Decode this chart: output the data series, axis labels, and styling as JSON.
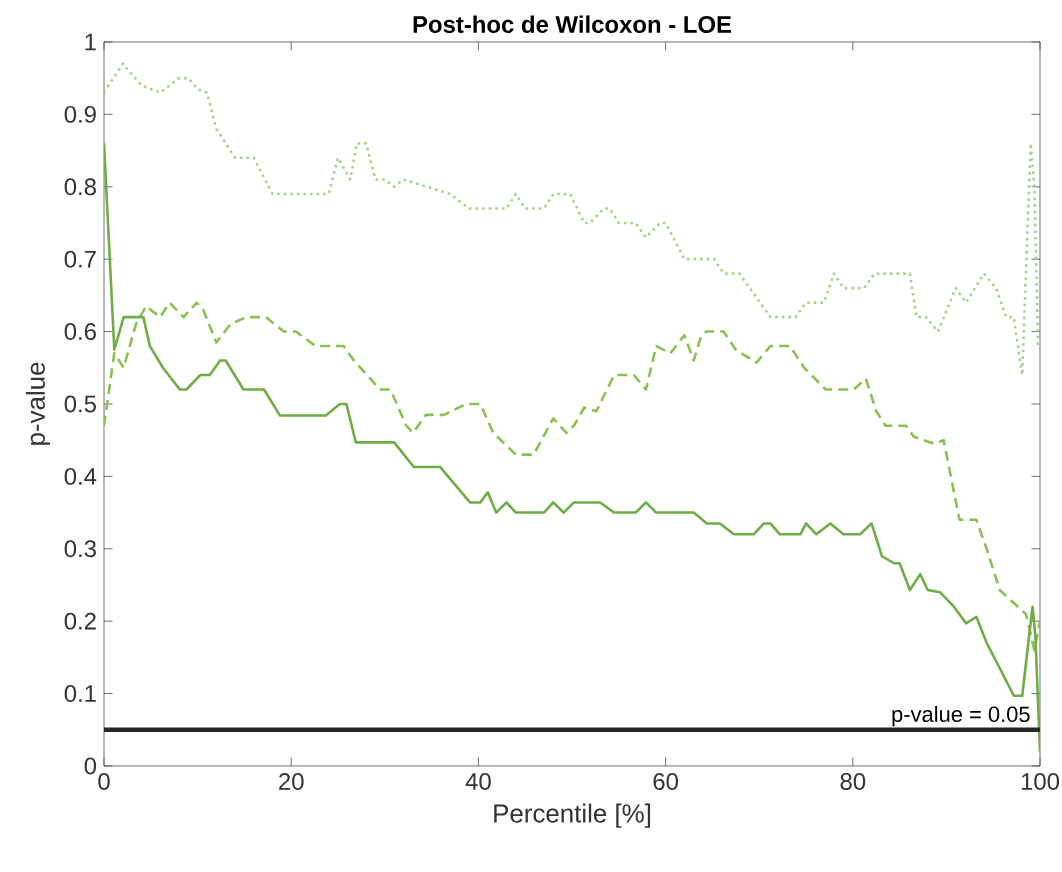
{
  "chart_data": {
    "type": "line",
    "title": "Post-hoc de Wilcoxon - LOE",
    "xlabel": "Percentile [%]",
    "ylabel": "p-value",
    "xlim": [
      0,
      100
    ],
    "ylim": [
      0,
      1
    ],
    "xticks": [
      0,
      20,
      40,
      60,
      80,
      100
    ],
    "yticks": [
      0,
      0.1,
      0.2,
      0.3,
      0.4,
      0.5,
      0.6,
      0.7,
      0.8,
      0.9,
      1
    ],
    "grid": false,
    "series": [
      {
        "color": "#a9d08e",
        "line_style": "dotted",
        "x": [
          0,
          2,
          4,
          6,
          8,
          9,
          10,
          11,
          12,
          13,
          14,
          16,
          18,
          24,
          25,
          26.3,
          27,
          28,
          29,
          30,
          31,
          32,
          37,
          39,
          43,
          44,
          45,
          47,
          48,
          49.8,
          51.3,
          51.9,
          53.4,
          54,
          55,
          56.8,
          57.9,
          59.4,
          60,
          62,
          65.2,
          66.2,
          67.9,
          71.2,
          73.9,
          75,
          76.9,
          78,
          79,
          81.2,
          82.3,
          86.1,
          86.8,
          87.8,
          89.1,
          91,
          92.1,
          94,
          95.3,
          96.4,
          97.2,
          98.1,
          99,
          99.4,
          99.8,
          100
        ],
        "values": [
          0.93,
          0.97,
          0.94,
          0.93,
          0.95,
          0.95,
          0.935,
          0.93,
          0.88,
          0.86,
          0.84,
          0.84,
          0.79,
          0.79,
          0.84,
          0.81,
          0.86,
          0.86,
          0.81,
          0.81,
          0.8,
          0.81,
          0.79,
          0.77,
          0.77,
          0.79,
          0.77,
          0.77,
          0.79,
          0.79,
          0.75,
          0.75,
          0.77,
          0.77,
          0.75,
          0.75,
          0.73,
          0.75,
          0.75,
          0.7,
          0.7,
          0.68,
          0.68,
          0.62,
          0.62,
          0.64,
          0.64,
          0.68,
          0.66,
          0.66,
          0.68,
          0.68,
          0.62,
          0.62,
          0.6,
          0.66,
          0.64,
          0.68,
          0.66,
          0.62,
          0.62,
          0.54,
          0.86,
          0.8,
          0.58,
          0.58
        ]
      },
      {
        "color": "#8cc152",
        "line_style": "dashed",
        "x": [
          0,
          1.1,
          2.1,
          3.4,
          4.5,
          6,
          7,
          8.5,
          9.9,
          10.6,
          12,
          13.5,
          15.2,
          17.3,
          19.2,
          20.5,
          22.6,
          25.6,
          26.7,
          29.5,
          30.6,
          32.3,
          33,
          34.4,
          36.3,
          38.7,
          40.2,
          41.6,
          44,
          45.9,
          48,
          49.4,
          50.2,
          51.3,
          52.6,
          54.5,
          56.6,
          57.9,
          59,
          60.5,
          62,
          63,
          63.7,
          64.3,
          66.2,
          67.5,
          69.7,
          71.2,
          73.3,
          74.8,
          77.1,
          80.1,
          81.4,
          82.5,
          83.5,
          85.7,
          86.5,
          88.7,
          89.7,
          91.4,
          93.2,
          94.3,
          95.7,
          97.2,
          98.5,
          99.4,
          100
        ],
        "values": [
          0.47,
          0.57,
          0.55,
          0.61,
          0.635,
          0.62,
          0.64,
          0.62,
          0.64,
          0.63,
          0.585,
          0.61,
          0.62,
          0.62,
          0.6,
          0.6,
          0.58,
          0.58,
          0.56,
          0.52,
          0.52,
          0.47,
          0.46,
          0.485,
          0.485,
          0.5,
          0.5,
          0.46,
          0.43,
          0.43,
          0.48,
          0.46,
          0.47,
          0.495,
          0.49,
          0.54,
          0.54,
          0.52,
          0.58,
          0.57,
          0.595,
          0.56,
          0.59,
          0.6,
          0.6,
          0.575,
          0.557,
          0.58,
          0.58,
          0.55,
          0.52,
          0.52,
          0.535,
          0.49,
          0.47,
          0.47,
          0.455,
          0.445,
          0.45,
          0.34,
          0.34,
          0.3,
          0.243,
          0.225,
          0.21,
          0.16,
          0.2
        ]
      },
      {
        "color": "#70ad47",
        "line_style": "solid",
        "x": [
          0,
          1.1,
          2.1,
          4.2,
          4.9,
          6.3,
          8.1,
          8.8,
          10.3,
          11.3,
          12.4,
          13,
          14.9,
          17.1,
          18.8,
          23.7,
          25.2,
          25.9,
          26.9,
          31,
          33.1,
          35.9,
          39.1,
          40.2,
          41,
          41.9,
          43,
          44,
          47,
          48,
          49.1,
          50.2,
          53,
          54.5,
          56.8,
          57.9,
          59,
          63,
          64.4,
          65.8,
          67.3,
          69.4,
          70.5,
          71.2,
          72.2,
          74.4,
          75,
          76.1,
          77.6,
          79,
          80.8,
          82,
          83.1,
          84.4,
          85,
          86.1,
          87.2,
          88,
          89.3,
          90.8,
          92.1,
          93.2,
          94.3,
          95.7,
          97.2,
          98.1,
          99.2,
          99.5,
          100
        ],
        "values": [
          0.86,
          0.575,
          0.62,
          0.62,
          0.58,
          0.55,
          0.52,
          0.52,
          0.54,
          0.54,
          0.56,
          0.56,
          0.52,
          0.52,
          0.484,
          0.484,
          0.5,
          0.5,
          0.447,
          0.447,
          0.413,
          0.413,
          0.364,
          0.364,
          0.378,
          0.35,
          0.364,
          0.35,
          0.35,
          0.364,
          0.35,
          0.364,
          0.364,
          0.35,
          0.35,
          0.364,
          0.35,
          0.35,
          0.335,
          0.335,
          0.32,
          0.32,
          0.335,
          0.335,
          0.32,
          0.32,
          0.335,
          0.32,
          0.335,
          0.32,
          0.32,
          0.335,
          0.29,
          0.28,
          0.28,
          0.243,
          0.265,
          0.243,
          0.24,
          0.22,
          0.197,
          0.206,
          0.17,
          0.135,
          0.097,
          0.097,
          0.22,
          0.18,
          0.02
        ]
      }
    ],
    "ref_lines": [
      {
        "axis": "y",
        "value": 0.05,
        "label": "p-value = 0.05",
        "color": "#262626"
      }
    ]
  }
}
